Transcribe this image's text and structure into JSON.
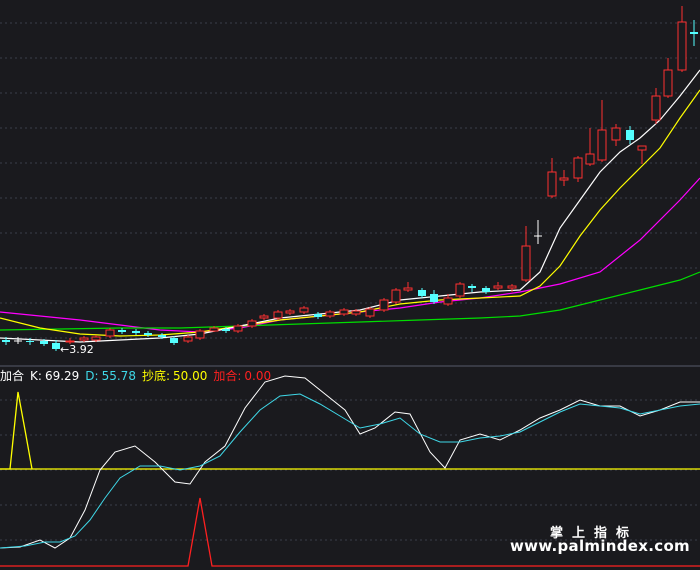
{
  "indicator": {
    "name": "加合",
    "k_label": "K:",
    "k_value": "69.29",
    "d_label": "D:",
    "d_value": "55.78",
    "chaodi_label": "抄底:",
    "chaodi_value": "50.00",
    "jiahe_label": "加合:",
    "jiahe_value": "0.00"
  },
  "price_panel": {
    "low_marker": "3.92"
  },
  "watermark": {
    "title": "掌上指标",
    "url": "www.palmindex.com"
  },
  "colors": {
    "background": "#1a1a1e",
    "grid": "#3a3e4a",
    "up_candle": "#ff3030",
    "down_candle": "#54ffff",
    "ma_white": "#ffffff",
    "ma_yellow": "#ffff00",
    "ma_magenta": "#ff00ff",
    "ma_green": "#00dd00",
    "k_line": "#ffffff",
    "d_line": "#3fd8e8",
    "chaodi_line": "#ffff00",
    "jiahe_line": "#ff2020"
  }
}
